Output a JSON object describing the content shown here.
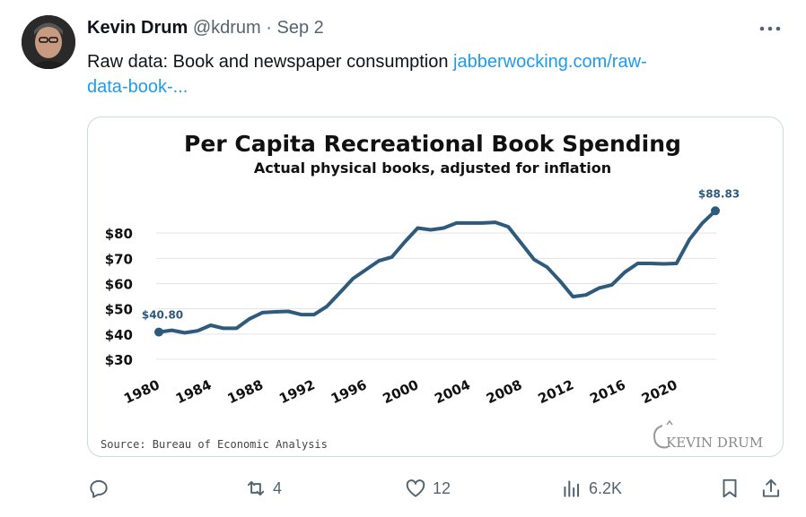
{
  "tweet": {
    "author_name": "Kevin Drum",
    "handle": "@kdrum",
    "separator": "·",
    "date": "Sep 2",
    "text": "Raw data: Book and newspaper consumption ",
    "link_text_line1": "jabberwocking.com/raw-",
    "link_text_line2": "data-book-...",
    "more_icon": "more-horizontal-icon"
  },
  "actions": {
    "reply": {
      "icon": "reply-icon",
      "count": ""
    },
    "retweet": {
      "icon": "retweet-icon",
      "count": "4"
    },
    "like": {
      "icon": "heart-icon",
      "count": "12"
    },
    "views": {
      "icon": "analytics-icon",
      "count": "6.2K"
    },
    "bookmark": {
      "icon": "bookmark-icon"
    },
    "share": {
      "icon": "share-icon"
    }
  },
  "colors": {
    "link": "#1d9bf0",
    "line": "#2e5a7c",
    "muted_text": "#536471"
  },
  "chart_data": {
    "type": "line",
    "title": "Per Capita Recreational Book Spending",
    "subtitle": "Actual physical books, adjusted for inflation",
    "source": "Source: Bureau of Economic Analysis",
    "brand": "KEVIN DRUM",
    "ylim": [
      30,
      90
    ],
    "yticks": [
      30,
      40,
      50,
      60,
      70,
      80
    ],
    "ytick_labels": [
      "$30",
      "$40",
      "$50",
      "$60",
      "$70",
      "$80"
    ],
    "xticks": [
      1980,
      1984,
      1988,
      1992,
      1996,
      2000,
      2004,
      2008,
      2012,
      2016,
      2020
    ],
    "grid": true,
    "series": [
      {
        "x": [
          1980,
          1981,
          1982,
          1983,
          1984,
          1985,
          1986,
          1987,
          1988,
          1989,
          1990,
          1991,
          1992,
          1993,
          1994,
          1995,
          1996,
          1997,
          1998,
          1999,
          2000,
          2001,
          2002,
          2003,
          2004,
          2005,
          2006,
          2007,
          2008,
          2009,
          2010,
          2011,
          2012,
          2013,
          2014,
          2015,
          2016,
          2017,
          2018,
          2019,
          2020,
          2021,
          2022,
          2023
        ],
        "values": [
          40.8,
          41.5,
          40.5,
          41.3,
          43.5,
          42.3,
          42.3,
          46,
          48.5,
          48.8,
          49,
          47.7,
          47.7,
          51,
          56.5,
          62,
          65.5,
          69,
          70.5,
          76.5,
          82,
          81.3,
          82,
          84,
          84,
          84,
          84.3,
          82.5,
          76,
          69.5,
          66.5,
          61,
          54.8,
          55.5,
          58.2,
          59.5,
          64.5,
          68,
          68,
          67.8,
          68,
          77.5,
          84,
          88.83
        ]
      }
    ],
    "annotations": [
      {
        "x": 1980,
        "y": 40.8,
        "label": "$40.80"
      },
      {
        "x": 2023,
        "y": 88.83,
        "label": "$88.83"
      }
    ]
  }
}
